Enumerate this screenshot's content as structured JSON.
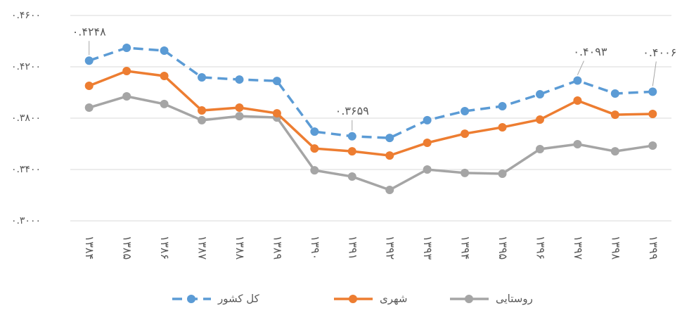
{
  "chart_data": {
    "type": "line",
    "categories": [
      "۱۳۸۴",
      "۱۳۸۵",
      "۱۳۸۶",
      "۱۳۸۷",
      "۱۳۸۸",
      "۱۳۸۹",
      "۱۳۹۰",
      "۱۳۹۱",
      "۱۳۹۲",
      "۱۳۹۳",
      "۱۳۹۴",
      "۱۳۹۵",
      "۱۳۹۶",
      "۱۳۹۷",
      "۱۳۹۸",
      "۱۳۹۹"
    ],
    "series": [
      {
        "name": "کل کشور",
        "color": "#5b9bd5",
        "dashed": true,
        "values": [
          0.4248,
          0.4348,
          0.4326,
          0.4118,
          0.4101,
          0.409,
          0.3695,
          0.3659,
          0.3646,
          0.3784,
          0.3855,
          0.3893,
          0.3986,
          0.4093,
          0.3992,
          0.4006
        ],
        "value_labels": [
          "۰.۴۲۴۸",
          null,
          null,
          null,
          null,
          null,
          null,
          "۰.۳۶۵۹",
          null,
          null,
          null,
          null,
          null,
          "۰.۴۰۹۳",
          null,
          "۰.۴۰۰۶"
        ]
      },
      {
        "name": "شهری",
        "color": "#ed7d31",
        "values": [
          0.4052,
          0.4167,
          0.4129,
          0.386,
          0.3882,
          0.3838,
          0.3564,
          0.3542,
          0.3509,
          0.3608,
          0.3679,
          0.3729,
          0.3789,
          0.3937,
          0.3827,
          0.3833
        ]
      },
      {
        "name": "روستایی",
        "color": "#a5a5a5",
        "values": [
          0.3882,
          0.397,
          0.391,
          0.3784,
          0.3816,
          0.3805,
          0.3394,
          0.3345,
          0.3241,
          0.34,
          0.3373,
          0.3367,
          0.3559,
          0.3597,
          0.3542,
          0.3586
        ]
      }
    ],
    "ylim": [
      0.3,
      0.46
    ],
    "yticks": [
      {
        "value": 0.3,
        "label": "۰.۳۰۰۰"
      },
      {
        "value": 0.34,
        "label": "۰.۳۴۰۰"
      },
      {
        "value": 0.38,
        "label": "۰.۳۸۰۰"
      },
      {
        "value": 0.42,
        "label": "۰.۴۲۰۰"
      },
      {
        "value": 0.46,
        "label": "۰.۴۶۰۰"
      }
    ],
    "grid": true,
    "legend": "bottom"
  }
}
